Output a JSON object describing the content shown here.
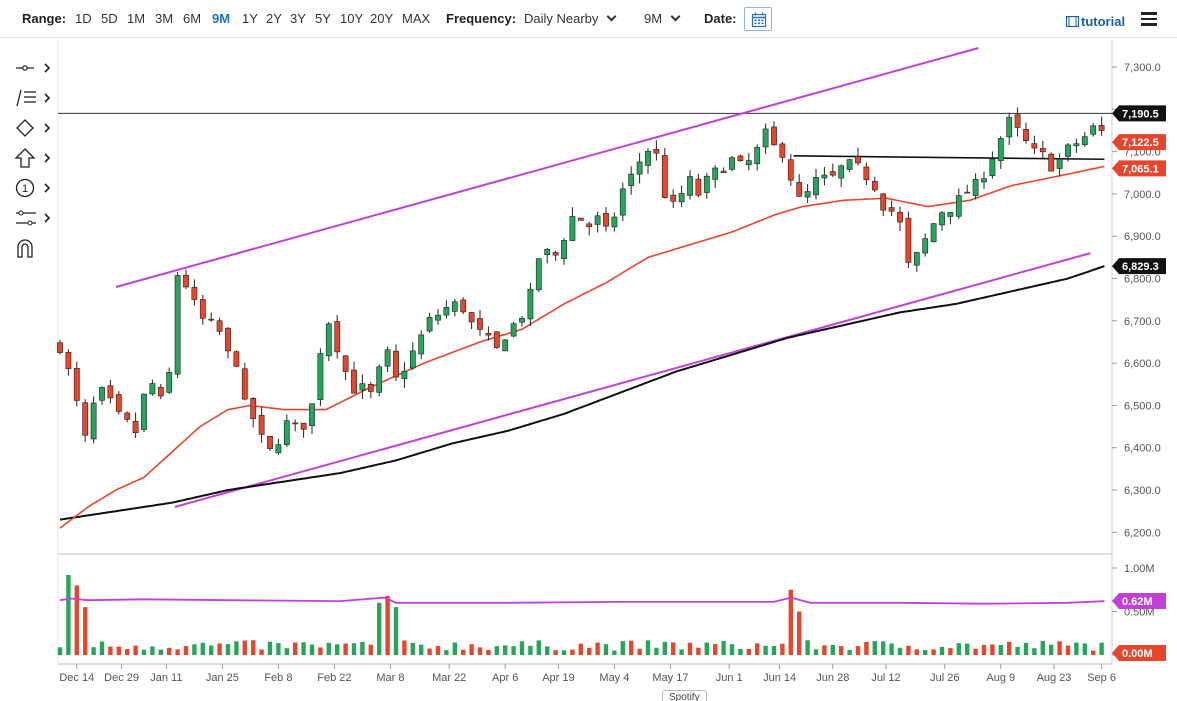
{
  "toolbar": {
    "range_label": "Range:",
    "ranges": [
      "1D",
      "5D",
      "1M",
      "3M",
      "6M",
      "9M",
      "1Y",
      "2Y",
      "3Y",
      "5Y",
      "10Y",
      "20Y",
      "MAX"
    ],
    "active_range": "9M",
    "frequency_label": "Frequency:",
    "frequency_value": "Daily Nearby",
    "period_value": "9M",
    "date_label": "Date:",
    "tutorial_label": "tutorial"
  },
  "left_tools": [
    "crosshair-tool-icon",
    "drawing-tools-icon",
    "shapes-tool-icon",
    "arrow-tool-icon",
    "annotation-number-icon",
    "measure-tool-icon",
    "magnet-icon"
  ],
  "tooltip": "Spotify",
  "colors": {
    "up": "#26a65b",
    "down": "#e8462c",
    "ma_short": "#e8462c",
    "ma_long": "#111111",
    "trend_channel": "#c040d8",
    "volume_avg": "#c040d8",
    "resistance": "#111111"
  },
  "chart_data": {
    "type": "candlestick",
    "x_ticks": [
      "Dec 14",
      "Dec 29",
      "Jan 11",
      "Jan 25",
      "Feb 8",
      "Feb 22",
      "Mar 8",
      "Mar 22",
      "Apr 6",
      "Apr 19",
      "May 4",
      "May 17",
      "Jun 1",
      "Jun 14",
      "Jun 28",
      "Jul 12",
      "Jul 26",
      "Aug 9",
      "Aug 23",
      "Sep 6"
    ],
    "y_ticks": [
      "7,300.0",
      "7,200.0",
      "7,100.0",
      "7,000.0",
      "6,900.0",
      "6,800.0",
      "6,700.0",
      "6,600.0",
      "6,500.0",
      "6,400.0",
      "6,300.0",
      "6,200.0"
    ],
    "ylim": [
      6170,
      7345
    ],
    "price_badges": [
      {
        "label": "7,190.5",
        "value": 7190.5,
        "color": "#111111",
        "text": "#ffffff"
      },
      {
        "label": "7,122.5",
        "value": 7122.5,
        "color": "#e8462c",
        "text": "#ffffff"
      },
      {
        "label": "7,065.1",
        "value": 7065.1,
        "color": "#e8462c",
        "text": "#ffffff"
      },
      {
        "label": "6,829.3",
        "value": 6829.3,
        "color": "#111111",
        "text": "#ffffff"
      }
    ],
    "close_path": [
      [
        0,
        6640
      ],
      [
        4,
        6560
      ],
      [
        9,
        6420
      ],
      [
        12,
        6500
      ],
      [
        16,
        6540
      ],
      [
        20,
        6470
      ],
      [
        23,
        6480
      ],
      [
        26,
        6410
      ],
      [
        30,
        6520
      ],
      [
        34,
        6560
      ],
      [
        38,
        6460
      ],
      [
        41,
        6800
      ],
      [
        43,
        6820
      ],
      [
        47,
        6750
      ],
      [
        52,
        6690
      ],
      [
        56,
        6690
      ],
      [
        60,
        6620
      ],
      [
        64,
        6600
      ],
      [
        66,
        6500
      ],
      [
        69,
        6470
      ],
      [
        72,
        6420
      ],
      [
        76,
        6380
      ],
      [
        80,
        6460
      ],
      [
        86,
        6440
      ],
      [
        90,
        6500
      ],
      [
        95,
        6720
      ],
      [
        100,
        6620
      ],
      [
        104,
        6540
      ],
      [
        108,
        6540
      ],
      [
        112,
        6520
      ],
      [
        116,
        6640
      ],
      [
        120,
        6560
      ],
      [
        124,
        6600
      ],
      [
        128,
        6650
      ],
      [
        132,
        6700
      ],
      [
        136,
        6720
      ],
      [
        140,
        6740
      ],
      [
        144,
        6730
      ],
      [
        148,
        6680
      ],
      [
        152,
        6660
      ],
      [
        156,
        6630
      ],
      [
        160,
        6680
      ],
      [
        164,
        6700
      ],
      [
        168,
        6760
      ],
      [
        172,
        6880
      ],
      [
        176,
        6840
      ],
      [
        180,
        6900
      ],
      [
        184,
        6960
      ],
      [
        188,
        6920
      ],
      [
        192,
        6940
      ],
      [
        196,
        6900
      ],
      [
        200,
        7000
      ],
      [
        204,
        7040
      ],
      [
        208,
        7090
      ],
      [
        212,
        7120
      ],
      [
        216,
        7000
      ],
      [
        220,
        6960
      ],
      [
        224,
        7040
      ],
      [
        228,
        7000
      ],
      [
        232,
        7040
      ],
      [
        236,
        7060
      ],
      [
        240,
        7080
      ],
      [
        244,
        7060
      ],
      [
        248,
        7090
      ],
      [
        252,
        7140
      ],
      [
        256,
        7100
      ],
      [
        259,
        7100
      ],
      [
        263,
        6980
      ],
      [
        267,
        7000
      ],
      [
        271,
        7040
      ],
      [
        275,
        7030
      ],
      [
        279,
        7060
      ],
      [
        283,
        7070
      ],
      [
        287,
        7050
      ],
      [
        291,
        7020
      ],
      [
        295,
        6960
      ],
      [
        299,
        6960
      ],
      [
        303,
        6830
      ],
      [
        307,
        6860
      ],
      [
        311,
        6920
      ],
      [
        315,
        6960
      ],
      [
        319,
        6970
      ],
      [
        323,
        7000
      ],
      [
        327,
        7020
      ],
      [
        331,
        7060
      ],
      [
        335,
        7120
      ],
      [
        339,
        7170
      ],
      [
        343,
        7140
      ],
      [
        347,
        7100
      ],
      [
        351,
        7090
      ],
      [
        355,
        7060
      ],
      [
        359,
        7100
      ],
      [
        363,
        7120
      ],
      [
        367,
        7140
      ],
      [
        371,
        7170
      ],
      [
        373,
        7122.5
      ]
    ],
    "ma_short": [
      [
        0,
        6210
      ],
      [
        10,
        6260
      ],
      [
        20,
        6300
      ],
      [
        30,
        6330
      ],
      [
        40,
        6390
      ],
      [
        50,
        6450
      ],
      [
        60,
        6490
      ],
      [
        68,
        6500
      ],
      [
        80,
        6490
      ],
      [
        95,
        6490
      ],
      [
        110,
        6540
      ],
      [
        130,
        6600
      ],
      [
        150,
        6650
      ],
      [
        165,
        6680
      ],
      [
        180,
        6740
      ],
      [
        195,
        6790
      ],
      [
        210,
        6850
      ],
      [
        225,
        6880
      ],
      [
        240,
        6910
      ],
      [
        255,
        6950
      ],
      [
        265,
        6970
      ],
      [
        280,
        6985
      ],
      [
        295,
        6990
      ],
      [
        310,
        6970
      ],
      [
        325,
        6985
      ],
      [
        340,
        7020
      ],
      [
        355,
        7040
      ],
      [
        373,
        7065.1
      ]
    ],
    "ma_long": [
      [
        0,
        6230
      ],
      [
        20,
        6250
      ],
      [
        40,
        6270
      ],
      [
        60,
        6300
      ],
      [
        80,
        6320
      ],
      [
        100,
        6340
      ],
      [
        120,
        6370
      ],
      [
        140,
        6410
      ],
      [
        160,
        6440
      ],
      [
        180,
        6480
      ],
      [
        200,
        6530
      ],
      [
        220,
        6580
      ],
      [
        240,
        6620
      ],
      [
        260,
        6660
      ],
      [
        280,
        6690
      ],
      [
        300,
        6720
      ],
      [
        320,
        6740
      ],
      [
        340,
        6770
      ],
      [
        360,
        6800
      ],
      [
        373,
        6829.3
      ]
    ],
    "channel_upper": [
      [
        20,
        6780
      ],
      [
        328,
        7345
      ]
    ],
    "channel_lower": [
      [
        41,
        6260
      ],
      [
        368,
        6860
      ]
    ],
    "resistance": [
      [
        262,
        7090
      ],
      [
        373,
        7082
      ]
    ],
    "horizontal_line": 7190.5,
    "volume_panel": {
      "y_ticks": [
        "1.00M",
        "0.50M",
        "0.00M"
      ],
      "ylim": [
        0,
        1.0
      ],
      "badges": [
        {
          "label": "0.62M",
          "value": 0.62,
          "color": "#c040d8"
        },
        {
          "label": "0.00M",
          "value": 0.0,
          "color": "#e8462c"
        }
      ],
      "spikes": [
        [
          4,
          0.92
        ],
        [
          6,
          0.8
        ],
        [
          8,
          0.55
        ],
        [
          114,
          0.6
        ],
        [
          118,
          0.68
        ],
        [
          120,
          0.55
        ],
        [
          260,
          0.87
        ],
        [
          262,
          0.75
        ],
        [
          264,
          0.5
        ]
      ],
      "avg_path": [
        [
          0,
          0.63
        ],
        [
          4,
          0.65
        ],
        [
          10,
          0.63
        ],
        [
          30,
          0.64
        ],
        [
          60,
          0.63
        ],
        [
          100,
          0.62
        ],
        [
          116,
          0.66
        ],
        [
          120,
          0.6
        ],
        [
          160,
          0.6
        ],
        [
          200,
          0.61
        ],
        [
          255,
          0.61
        ],
        [
          261,
          0.66
        ],
        [
          268,
          0.6
        ],
        [
          300,
          0.6
        ],
        [
          330,
          0.59
        ],
        [
          360,
          0.6
        ],
        [
          373,
          0.62
        ]
      ]
    }
  }
}
